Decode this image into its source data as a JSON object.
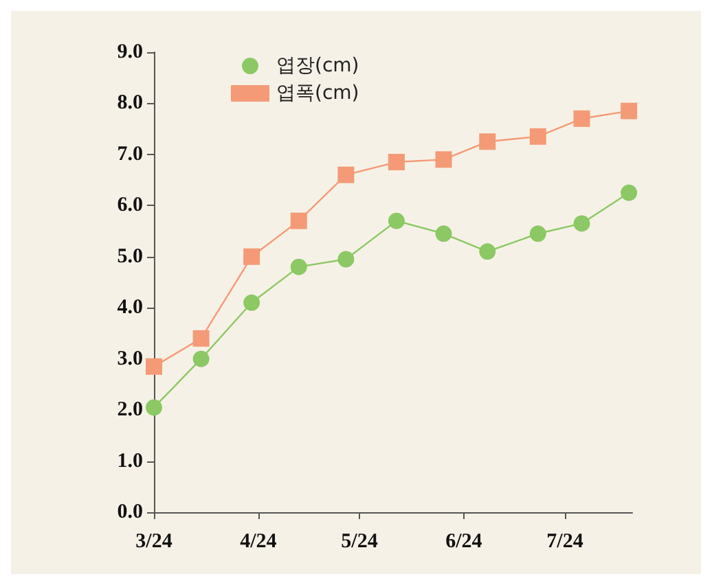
{
  "chart_data": {
    "type": "line",
    "x": [
      "--03-24",
      "--04-07",
      "--04-22",
      "--05-06",
      "--05-20",
      "--06-04",
      "--06-18",
      "--07-01",
      "--07-16",
      "--07-29",
      "--08-12"
    ],
    "series": [
      {
        "name": "엽장(cm)",
        "color": "#8cc864",
        "marker": "circle",
        "values": [
          2.05,
          3.0,
          4.1,
          4.8,
          4.95,
          5.7,
          5.45,
          5.1,
          5.45,
          5.65,
          6.25
        ]
      },
      {
        "name": "엽폭(cm)",
        "color": "#f49a76",
        "marker": "square",
        "values": [
          2.85,
          3.4,
          5.0,
          5.7,
          6.6,
          6.85,
          6.9,
          7.25,
          7.35,
          7.7,
          7.85
        ]
      }
    ],
    "xlim": [
      "--03-24",
      "--08-13"
    ],
    "xticks": [
      {
        "value": "--03-24",
        "label": "3/24"
      },
      {
        "value": "--04-24",
        "label": "4/24"
      },
      {
        "value": "--05-24",
        "label": "5/24"
      },
      {
        "value": "--06-24",
        "label": "6/24"
      },
      {
        "value": "--07-24",
        "label": "7/24"
      }
    ],
    "ylim": [
      0,
      9
    ],
    "yticks": [
      {
        "value": 0,
        "label": "0.0"
      },
      {
        "value": 1,
        "label": "1.0"
      },
      {
        "value": 2,
        "label": "2.0"
      },
      {
        "value": 3,
        "label": "3.0"
      },
      {
        "value": 4,
        "label": "4.0"
      },
      {
        "value": 5,
        "label": "5.0"
      },
      {
        "value": 6,
        "label": "6.0"
      },
      {
        "value": 7,
        "label": "7.0"
      },
      {
        "value": 8,
        "label": "8.0"
      },
      {
        "value": 9,
        "label": "9.0"
      }
    ],
    "grid": false,
    "legend": "top left",
    "line_style": "solid"
  }
}
